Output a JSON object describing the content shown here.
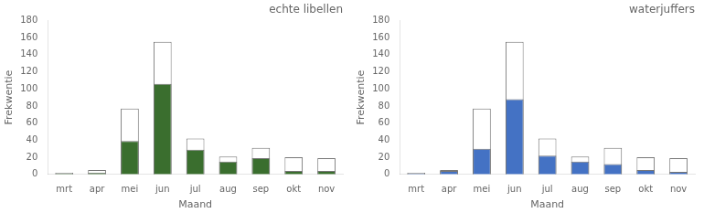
{
  "chart_data": [
    {
      "type": "bar",
      "title": "echte libellen",
      "xlabel": "Maand",
      "ylabel": "Frekwentie",
      "categories": [
        "mrt",
        "apr",
        "mei",
        "jun",
        "jul",
        "aug",
        "sep",
        "okt",
        "nov"
      ],
      "series": [
        {
          "color": "white",
          "values": [
            2,
            5,
            77,
            155,
            42,
            21,
            31,
            20,
            19
          ]
        },
        {
          "color": "#3a6e2e",
          "values": [
            1,
            2,
            39,
            106,
            29,
            15,
            19,
            4,
            4
          ]
        }
      ],
      "stacked": false,
      "grid": false,
      "ylim": [
        0,
        180
      ],
      "yticks": [
        0,
        20,
        40,
        60,
        80,
        100,
        120,
        140,
        160,
        180
      ]
    },
    {
      "type": "bar",
      "title": "waterjuffers",
      "xlabel": "Maand",
      "ylabel": "Frekwentie",
      "categories": [
        "mrt",
        "apr",
        "mei",
        "jun",
        "jul",
        "aug",
        "sep",
        "okt",
        "nov"
      ],
      "series": [
        {
          "color": "white",
          "values": [
            2,
            5,
            77,
            155,
            42,
            21,
            31,
            20,
            19
          ]
        },
        {
          "color": "#4472c4",
          "values": [
            1,
            4,
            30,
            88,
            22,
            15,
            12,
            5,
            3
          ]
        }
      ],
      "stacked": false,
      "grid": false,
      "ylim": [
        0,
        180
      ],
      "yticks": [
        0,
        20,
        40,
        60,
        80,
        100,
        120,
        140,
        160,
        180
      ]
    }
  ]
}
